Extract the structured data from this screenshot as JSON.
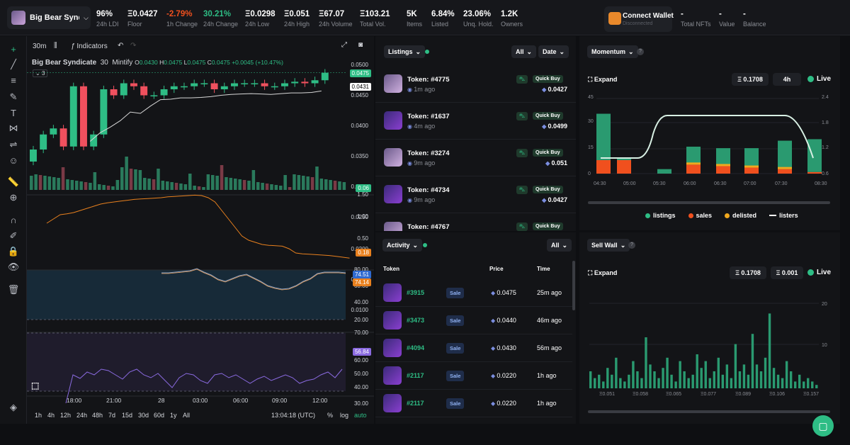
{
  "collection": {
    "name": "Big Bear Synd...",
    "full_name": "Big Bear Syndicate"
  },
  "stats": [
    {
      "value": "96%",
      "label": "24h LDI"
    },
    {
      "value": "Ξ0.0427",
      "label": "Floor"
    },
    {
      "value": "-2.79%",
      "label": "1h Change"
    },
    {
      "value": "30.21%",
      "label": "24h Change"
    },
    {
      "value": "Ξ0.0298",
      "label": "24h Low"
    },
    {
      "value": "Ξ0.051",
      "label": "24h High"
    },
    {
      "value": "Ξ67.07",
      "label": "24h Volume"
    },
    {
      "value": "Ξ103.21",
      "label": "Total Vol."
    },
    {
      "value": "5K",
      "label": "Items"
    },
    {
      "value": "6.84%",
      "label": "Listed"
    },
    {
      "value": "23.06%",
      "label": "Unq. Hold."
    },
    {
      "value": "1.2K",
      "label": "Owners"
    }
  ],
  "wallet": {
    "button": "Connect Wallet",
    "status": "Disconnected",
    "stats": [
      {
        "value": "-",
        "label": "Total NFTs"
      },
      {
        "value": "-",
        "label": "Value"
      },
      {
        "value": "-",
        "label": "Balance"
      }
    ]
  },
  "chart_toolbar": {
    "interval": "30m",
    "indicators": "Indicators"
  },
  "ohlc": {
    "title": "Big Bear Syndicate",
    "interval": "30",
    "source": "Mintify",
    "o": "0.0430",
    "h": "0.0475",
    "l": "0.0475",
    "c": "0.0475",
    "change": "+0.0045 (+10.47%)",
    "indicator_count": "3"
  },
  "price_axis": [
    "0.0500",
    "0.0450",
    "0.0400",
    "0.0350",
    "0.0300",
    "0.0250",
    "0.0200",
    "0.0150",
    "0.0100"
  ],
  "price_tags": {
    "last": "0.0475",
    "ma": "0.0431",
    "vol": "0.06"
  },
  "ind1_axis": [
    "1.50",
    "1.00",
    "0.50"
  ],
  "ind1_tag": "0.18",
  "ind2_axis": [
    "80.00",
    "60.00",
    "40.00",
    "20.00"
  ],
  "ind2_tags": [
    "74.51",
    "74.14"
  ],
  "ind3_axis": [
    "70.00",
    "60.00",
    "50.00",
    "40.00",
    "30.00"
  ],
  "ind3_tag": "56.84",
  "time_axis": [
    "18:00",
    "21:00",
    "28",
    "03:00",
    "06:00",
    "09:00",
    "12:00"
  ],
  "timeframes": [
    "1h",
    "4h",
    "12h",
    "24h",
    "48h",
    "7d",
    "15d",
    "30d",
    "60d",
    "1y",
    "All"
  ],
  "clock": "13:04:18 (UTC)",
  "scale_opts": [
    "%",
    "log",
    "auto"
  ],
  "listings": {
    "label": "Listings",
    "filter": "All",
    "sort": "Date",
    "items": [
      {
        "token": "Token: #4775",
        "ago": "1m ago",
        "price": "0.0427",
        "buy": "Quick Buy"
      },
      {
        "token": "Token: #1637",
        "ago": "4m ago",
        "price": "0.0499",
        "buy": "Quick Buy"
      },
      {
        "token": "Token: #3274",
        "ago": "9m ago",
        "price": "0.051",
        "buy": "Quick Buy"
      },
      {
        "token": "Token: #4734",
        "ago": "9m ago",
        "price": "0.0427",
        "buy": "Quick Buy"
      },
      {
        "token": "Token: #4767",
        "ago": "",
        "price": "",
        "buy": "Quick Buy"
      }
    ]
  },
  "activity": {
    "label": "Activity",
    "filter": "All",
    "headers": {
      "token": "Token",
      "price": "Price",
      "time": "Time"
    },
    "items": [
      {
        "token": "#3915",
        "type": "Sale",
        "price": "0.0475",
        "time": "25m ago"
      },
      {
        "token": "#3473",
        "type": "Sale",
        "price": "0.0440",
        "time": "46m ago"
      },
      {
        "token": "#4094",
        "type": "Sale",
        "price": "0.0430",
        "time": "56m ago"
      },
      {
        "token": "#2117",
        "type": "Sale",
        "price": "0.0220",
        "time": "1h ago"
      },
      {
        "token": "#2117",
        "type": "Sale",
        "price": "0.0220",
        "time": "1h ago"
      }
    ]
  },
  "momentum": {
    "label": "Momentum",
    "expand": "Expand",
    "price": "Ξ 0.1708",
    "interval": "4h",
    "live": "Live",
    "left_axis": [
      "45",
      "30",
      "15",
      "0"
    ],
    "right_axis": [
      "2.4",
      "1.8",
      "1.2",
      "0.6"
    ],
    "x": [
      "04:30",
      "05:00",
      "05:30",
      "06:00",
      "06:30",
      "07:00",
      "07:30",
      "08:30"
    ],
    "legend": [
      {
        "name": "listings",
        "color": "#2ebd85"
      },
      {
        "name": "sales",
        "color": "#f0501e"
      },
      {
        "name": "delisted",
        "color": "#f0a81e"
      },
      {
        "name": "listers",
        "color": "#ffffff"
      }
    ]
  },
  "sellwall": {
    "label": "Sell Wall",
    "expand": "Expand",
    "price": "Ξ 0.1708",
    "step": "Ξ 0.001",
    "live": "Live",
    "right_axis": [
      "20",
      "10"
    ],
    "x": [
      "Ξ0.051",
      "Ξ0.058",
      "Ξ0.065",
      "Ξ0.077",
      "Ξ0.089",
      "Ξ0.106",
      "Ξ0.157"
    ]
  },
  "chart_data": [
    {
      "type": "candlestick",
      "title": "Big Bear Syndicate",
      "series": [
        {
          "name": "price",
          "values": [
            0.022,
            0.027,
            0.029,
            0.023,
            0.043,
            0.023,
            0.027,
            0.042,
            0.04,
            0.044,
            0.043,
            0.04,
            0.04,
            0.042,
            0.043,
            0.043,
            0.044,
            0.044,
            0.042,
            0.043,
            0.044,
            0.044,
            0.044,
            0.043,
            0.043,
            0.044,
            0.0445,
            0.044,
            0.045,
            0.0475
          ]
        }
      ],
      "ylim": [
        0.01,
        0.05
      ]
    },
    {
      "type": "bar",
      "name": "momentum",
      "categories": [
        "04:30",
        "05:00",
        "05:30",
        "06:00",
        "06:30",
        "07:00",
        "07:30",
        "08:30"
      ],
      "series": [
        {
          "name": "listings",
          "values": [
            40,
            10,
            3,
            18,
            17,
            17,
            22,
            23
          ]
        },
        {
          "name": "sales",
          "values": [
            9,
            9,
            0,
            6,
            5,
            4,
            3,
            1
          ]
        }
      ],
      "ylim": [
        0,
        45
      ]
    },
    {
      "type": "bar",
      "name": "sellwall",
      "values": [
        5,
        3,
        4,
        2,
        6,
        4,
        9,
        3,
        2,
        4,
        8,
        5,
        3,
        15,
        7,
        5,
        3,
        6,
        9,
        4,
        2,
        8,
        5,
        3,
        4,
        10,
        6,
        8,
        3,
        5,
        9,
        4,
        7,
        3,
        13,
        5,
        7,
        4,
        16,
        7,
        5,
        9,
        22,
        6,
        4,
        3,
        8,
        5,
        2,
        4,
        2,
        3,
        2,
        1
      ],
      "ylim": [
        0,
        25
      ]
    }
  ]
}
